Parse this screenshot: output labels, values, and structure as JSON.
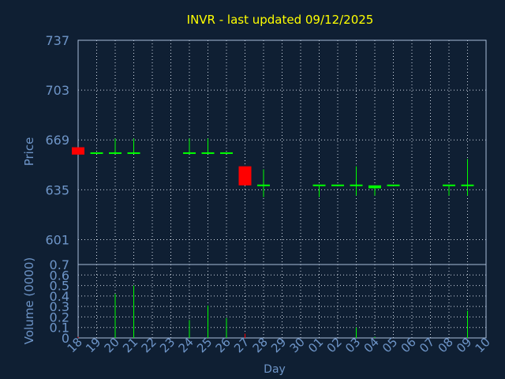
{
  "colors": {
    "background": "#0f1f33",
    "title": "#ffff00",
    "axis_text": "#6e95c8",
    "frame": "#a8bcd8",
    "grid": "#d0d8e4",
    "up": "#00ff00",
    "down": "#ff0000"
  },
  "chart_data": [
    {
      "type": "candlestick",
      "title": "INVR - last updated 09/12/2025",
      "ylabel": "Price",
      "ylim": [
        584,
        737
      ],
      "yticks": [
        601,
        635,
        669,
        703,
        737
      ],
      "x": [
        "18",
        "19",
        "20",
        "21",
        "22",
        "23",
        "24",
        "25",
        "26",
        "27",
        "28",
        "29",
        "30",
        "01",
        "02",
        "03",
        "04",
        "05",
        "06",
        "07",
        "08",
        "09",
        "10"
      ],
      "grid": true,
      "candles": [
        {
          "x": "18",
          "open": 664,
          "high": 664,
          "low": 659,
          "close": 659
        },
        {
          "x": "19",
          "open": 660,
          "high": 660,
          "low": 660,
          "close": 660
        },
        {
          "x": "20",
          "open": 660,
          "high": 670,
          "low": 660,
          "close": 660
        },
        {
          "x": "21",
          "open": 660,
          "high": 670,
          "low": 660,
          "close": 660
        },
        {
          "x": "24",
          "open": 660,
          "high": 670,
          "low": 660,
          "close": 660
        },
        {
          "x": "25",
          "open": 660,
          "high": 670,
          "low": 660,
          "close": 660
        },
        {
          "x": "26",
          "open": 660,
          "high": 660,
          "low": 660,
          "close": 660
        },
        {
          "x": "27",
          "open": 651,
          "high": 651,
          "low": 638,
          "close": 638
        },
        {
          "x": "28",
          "open": 638,
          "high": 649,
          "low": 630,
          "close": 638
        },
        {
          "x": "01",
          "open": 638,
          "high": 638,
          "low": 630,
          "close": 638
        },
        {
          "x": "02",
          "open": 638,
          "high": 638,
          "low": 638,
          "close": 638
        },
        {
          "x": "03",
          "open": 638,
          "high": 651,
          "low": 631,
          "close": 638
        },
        {
          "x": "04",
          "open": 636,
          "high": 638,
          "low": 631,
          "close": 638
        },
        {
          "x": "05",
          "open": 638,
          "high": 638,
          "low": 638,
          "close": 638
        },
        {
          "x": "08",
          "open": 638,
          "high": 638,
          "low": 631,
          "close": 638
        },
        {
          "x": "09",
          "open": 638,
          "high": 656,
          "low": 631,
          "close": 638
        }
      ]
    },
    {
      "type": "bar",
      "xlabel": "Day",
      "ylabel": "Volume (0000)",
      "ylim": [
        0,
        0.7
      ],
      "yticks": [
        "0",
        "0.1",
        "0.2",
        "0.3",
        "0.4",
        "0.5",
        "0.6",
        "0.7"
      ],
      "grid": true,
      "x": [
        "18",
        "19",
        "20",
        "21",
        "22",
        "23",
        "24",
        "25",
        "26",
        "27",
        "28",
        "29",
        "30",
        "01",
        "02",
        "03",
        "04",
        "05",
        "06",
        "07",
        "08",
        "09",
        "10"
      ],
      "values": [
        {
          "x": "18",
          "value": 0.01
        },
        {
          "x": "20",
          "value": 0.42
        },
        {
          "x": "21",
          "value": 0.5
        },
        {
          "x": "24",
          "value": 0.17
        },
        {
          "x": "25",
          "value": 0.31
        },
        {
          "x": "26",
          "value": 0.19
        },
        {
          "x": "27",
          "value": 0.04
        },
        {
          "x": "03",
          "value": 0.1
        },
        {
          "x": "04",
          "value": 0.01
        },
        {
          "x": "09",
          "value": 0.26
        }
      ]
    }
  ]
}
